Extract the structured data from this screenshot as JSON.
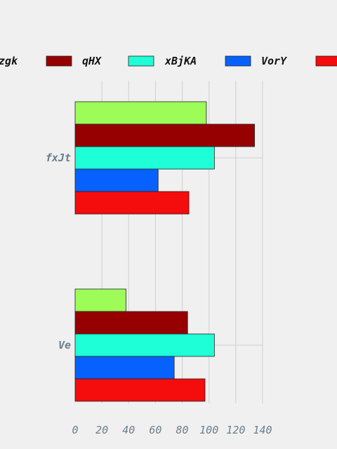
{
  "chart_data": {
    "type": "bar",
    "orientation": "horizontal",
    "categories": [
      "fxJt",
      "Ve"
    ],
    "series": [
      {
        "name": "zgk",
        "color": "#9dfc58",
        "values": [
          98,
          38
        ]
      },
      {
        "name": "qHX",
        "color": "#960000",
        "values": [
          134,
          84
        ]
      },
      {
        "name": "xBjKA",
        "color": "#1effd7",
        "values": [
          104,
          104
        ]
      },
      {
        "name": "VorY",
        "color": "#0761ff",
        "values": [
          62,
          74
        ]
      },
      {
        "name": "",
        "color": "#f50c0c",
        "values": [
          85,
          97
        ]
      }
    ],
    "xticks": [
      "0",
      "20",
      "40",
      "60",
      "80",
      "100",
      "120",
      "140"
    ],
    "xlim": [
      0,
      140
    ],
    "grid": true,
    "legend_position": "top"
  }
}
